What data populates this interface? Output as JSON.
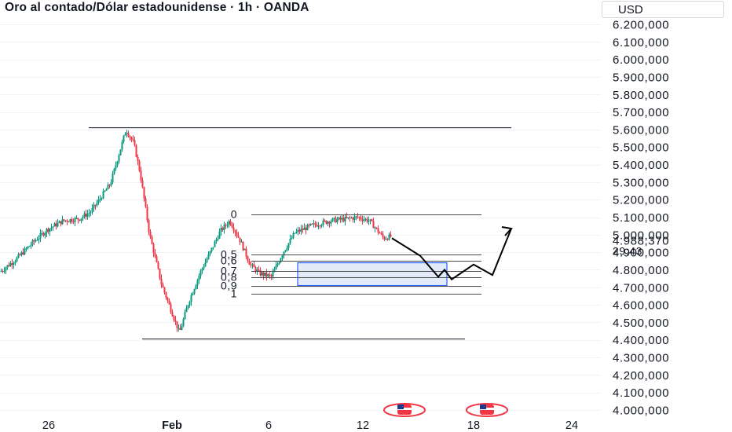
{
  "header": {
    "title": "Oro al contado/Dólar estadounidense · 1h · OANDA",
    "currency": "USD"
  },
  "price_label": {
    "value": "4.988,370",
    "countdown": "29:43"
  },
  "fib_labels": [
    "0",
    "0,5",
    "0,6",
    "0,7",
    "0,8",
    "0,9",
    "1"
  ],
  "event_icons": [
    "us-flag-icon",
    "us-flag-icon"
  ],
  "colors": {
    "up": "#089981",
    "down": "#f23645",
    "fib_box_fill": "#dce6f7",
    "fib_box_border": "#2962ff",
    "line": "#131722"
  },
  "chart_data": {
    "type": "line",
    "title": "Oro al contado/Dólar estadounidense · 1h · OANDA",
    "x_ticks": [
      "26",
      "Feb",
      "6",
      "12",
      "18",
      "24"
    ],
    "y_ticks": [
      "6.200,000",
      "6.100,000",
      "6.000,000",
      "5.900,000",
      "5.800,000",
      "5.700,000",
      "5.600,000",
      "5.500,000",
      "5.400,000",
      "5.300,000",
      "5.200,000",
      "5.100,000",
      "5.000,000",
      "4.900,000",
      "4.800,000",
      "4.700,000",
      "4.600,000",
      "4.500,000",
      "4.400,000",
      "4.300,000",
      "4.200,000",
      "4.100,000",
      "4.000,000"
    ],
    "ylim": [
      3985,
      6245
    ],
    "series": [
      {
        "values": [
          4790,
          4860,
          4950,
          5030,
          5080,
          5090,
          5130,
          5290,
          5600,
          5520,
          5350,
          5000,
          4720,
          4440,
          4620,
          4790,
          4880,
          5020,
          5080,
          4970,
          4830,
          4780,
          4760,
          4900,
          5010,
          5050,
          5080,
          5090,
          5100,
          5080,
          4980,
          4990
        ]
      }
    ],
    "levels": [
      5610,
      4405
    ],
    "fib_levels": [
      {
        "label": "0",
        "value": 5115
      },
      {
        "label": "0,5",
        "value": 4885
      },
      {
        "label": "0,6",
        "value": 4850
      },
      {
        "label": "0,7",
        "value": 4795
      },
      {
        "label": "0,8",
        "value": 4755
      },
      {
        "label": "0,9",
        "value": 4710
      },
      {
        "label": "1",
        "value": 4665
      }
    ],
    "projection": [
      4980,
      4880,
      4760,
      4800,
      4745,
      4830,
      4770,
      5035
    ],
    "last_price": 4988.37
  }
}
